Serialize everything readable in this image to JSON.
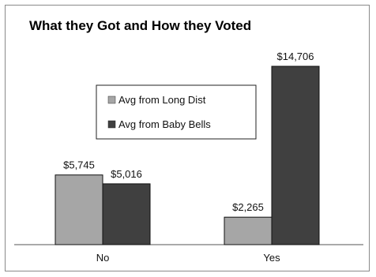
{
  "chart_data": {
    "type": "bar",
    "title": "What they Got and How they Voted",
    "categories": [
      "No",
      "Yes"
    ],
    "series": [
      {
        "name": "Avg from Long Dist",
        "values": [
          5745,
          2265
        ],
        "labels": [
          "$5,745",
          "$2,265"
        ],
        "color": "#a6a6a6"
      },
      {
        "name": "Avg from Baby Bells",
        "values": [
          5016,
          14706
        ],
        "labels": [
          "$5,016",
          "$14,706"
        ],
        "color": "#404040"
      }
    ],
    "ylim": [
      0,
      16000
    ],
    "grid": false,
    "legend_position": "upper-center"
  }
}
